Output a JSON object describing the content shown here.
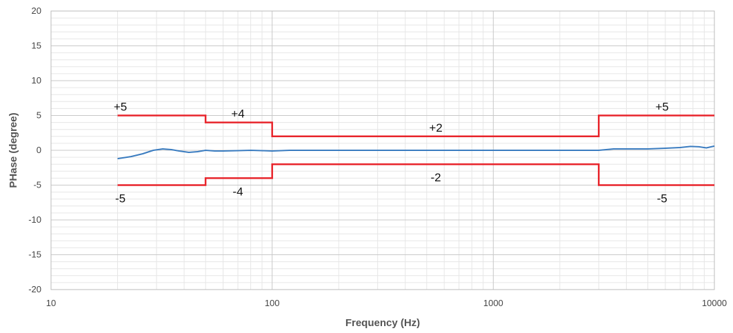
{
  "chart_data": {
    "type": "line",
    "title": "",
    "xlabel": "Frequency (Hz)",
    "ylabel": "PHase (degree)",
    "xscale": "log",
    "xlim": [
      10,
      10000
    ],
    "ylim": [
      -20,
      20
    ],
    "x_ticks": [
      "10",
      "100",
      "1000",
      "10000"
    ],
    "y_ticks": [
      "20",
      "15",
      "10",
      "5",
      "0",
      "-5",
      "-10",
      "-15",
      "-20"
    ],
    "grid": true,
    "legend": "none",
    "colors": {
      "limit": "#e8242b",
      "limit_dark": "#8b1a1a",
      "measured": "#3a7cc0",
      "grid_major": "#c8c8c8",
      "grid_minor": "#e6e6e6"
    },
    "series": [
      {
        "role": "upper-limit",
        "x": [
          20,
          50,
          50,
          100,
          100,
          3000,
          3000,
          10000
        ],
        "y": [
          5,
          5,
          4,
          4,
          2,
          2,
          5,
          5
        ]
      },
      {
        "role": "lower-limit",
        "x": [
          20,
          50,
          50,
          100,
          100,
          3000,
          3000,
          10000
        ],
        "y": [
          -5,
          -5,
          -4,
          -4,
          -2,
          -2,
          -5,
          -5
        ]
      },
      {
        "role": "measured",
        "x": [
          20,
          23,
          26,
          29,
          32,
          35,
          38,
          42,
          46,
          50,
          55,
          60,
          70,
          80,
          90,
          100,
          120,
          150,
          200,
          300,
          500,
          700,
          1000,
          1500,
          2000,
          3000,
          3500,
          4000,
          5000,
          6000,
          7000,
          7800,
          8500,
          9200,
          10000
        ],
        "y": [
          -1.2,
          -0.9,
          -0.5,
          0,
          0.2,
          0.1,
          -0.1,
          -0.3,
          -0.2,
          0,
          -0.1,
          -0.1,
          -0.05,
          0,
          -0.05,
          -0.1,
          0,
          0,
          0,
          0,
          0,
          0,
          0,
          0,
          0,
          0,
          0.2,
          0.2,
          0.2,
          0.3,
          0.4,
          0.55,
          0.5,
          0.35,
          0.6
        ]
      }
    ],
    "annotations": [
      {
        "text": "+5",
        "x": 20,
        "y": 5
      },
      {
        "text": "+4",
        "x": 70,
        "y": 4
      },
      {
        "text": "+2",
        "x": 550,
        "y": 2
      },
      {
        "text": "+5",
        "x": 5800,
        "y": 5
      },
      {
        "text": "-5",
        "x": 20,
        "y": -5
      },
      {
        "text": "-4",
        "x": 70,
        "y": -4
      },
      {
        "text": "-2",
        "x": 550,
        "y": -2
      },
      {
        "text": "-5",
        "x": 5800,
        "y": -5
      }
    ]
  }
}
